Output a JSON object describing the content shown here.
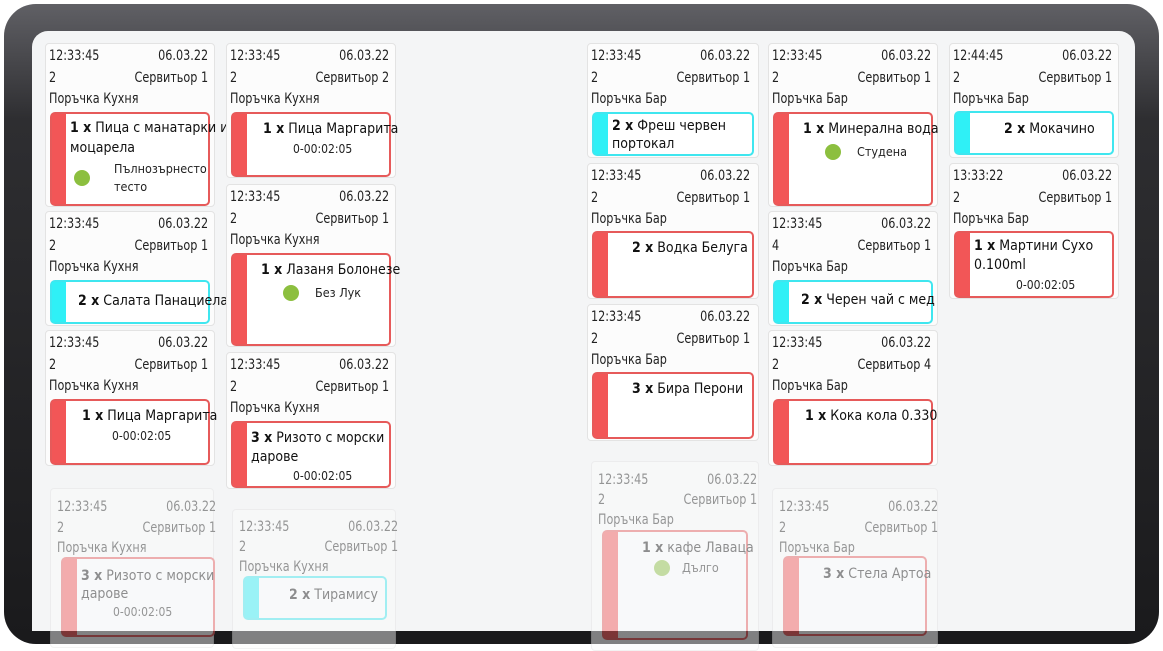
{
  "orders": [
    {
      "time": "12:33:45",
      "date": "06.03.22",
      "table": "2",
      "waiter": "Сервитьор 1",
      "type": "Поръчка Кухня",
      "items": [
        {
          "qty": "1 x",
          "name": "Пица с манатарки и",
          "name2": "моцарела",
          "mod": "Пълнозърнесто",
          "mod2": "тесто",
          "timer": ""
        }
      ]
    },
    {
      "time": "12:33:45",
      "date": "06.03.22",
      "table": "2",
      "waiter": "Сервитьор 1",
      "type": "Поръчка Кухня",
      "items": [
        {
          "qty": "2 x",
          "name": "Салата Панациела",
          "timer": ""
        }
      ]
    },
    {
      "time": "12:33:45",
      "date": "06.03.22",
      "table": "2",
      "waiter": "Сервитьор 1",
      "type": "Поръчка Кухня",
      "items": [
        {
          "qty": "1 x",
          "name": "Пица Маргарита",
          "timer": "0-00:02:05"
        }
      ]
    },
    {
      "time": "12:33:45",
      "date": "06.03.22",
      "table": "2",
      "waiter": "Сервитьор 1",
      "type": "Поръчка Кухня",
      "items": [
        {
          "qty": "3 x",
          "name": "Ризото с морски",
          "name2": "дарове",
          "timer": "0-00:02:05"
        }
      ]
    },
    {
      "time": "12:33:45",
      "date": "06.03.22",
      "table": "2",
      "waiter": "Сервитьор 2",
      "type": "Поръчка Кухня",
      "items": [
        {
          "qty": "1 x",
          "name": "Пица Маргарита",
          "timer": "0-00:02:05"
        }
      ]
    },
    {
      "time": "12:33:45",
      "date": "06.03.22",
      "table": "2",
      "waiter": "Сервитьор 1",
      "type": "Поръчка Кухня",
      "items": [
        {
          "qty": "1 x",
          "name": "Лазаня Болонезе",
          "mod": "Без Лук"
        }
      ]
    },
    {
      "time": "12:33:45",
      "date": "06.03.22",
      "table": "2",
      "waiter": "Сервитьор 1",
      "type": "Поръчка Кухня",
      "items": [
        {
          "qty": "3 x",
          "name": "Ризото с морски",
          "name2": "дарове",
          "timer": "0-00:02:05"
        }
      ]
    },
    {
      "time": "12:33:45",
      "date": "06.03.22",
      "table": "2",
      "waiter": "Сервитьор 1",
      "type": "Поръчка Кухня",
      "items": [
        {
          "qty": "2 x",
          "name": "Тирамису"
        }
      ]
    },
    {
      "time": "12:33:45",
      "date": "06.03.22",
      "table": "2",
      "waiter": "Сервитьор 1",
      "type": "Поръчка Бар",
      "items": [
        {
          "qty": "2 x",
          "name": "Фреш червен",
          "name2": "портокал"
        }
      ]
    },
    {
      "time": "12:33:45",
      "date": "06.03.22",
      "table": "2",
      "waiter": "Сервитьор 1",
      "type": "Поръчка Бар",
      "items": [
        {
          "qty": "2 x",
          "name": "Водка Белуга"
        }
      ]
    },
    {
      "time": "12:33:45",
      "date": "06.03.22",
      "table": "2",
      "waiter": "Сервитьор 1",
      "type": "Поръчка Бар",
      "items": [
        {
          "qty": "3 x",
          "name": "Бира Перони"
        }
      ]
    },
    {
      "time": "12:33:45",
      "date": "06.03.22",
      "table": "2",
      "waiter": "Сервитьор 1",
      "type": "Поръчка Бар",
      "items": [
        {
          "qty": "1 x",
          "name": "кафе Лаваца",
          "mod": "Дълго"
        }
      ]
    },
    {
      "time": "12:33:45",
      "date": "06.03.22",
      "table": "2",
      "waiter": "Сервитьор 1",
      "type": "Поръчка Бар",
      "items": [
        {
          "qty": "1 x",
          "name": "Минерална вода",
          "mod": "Студена"
        }
      ]
    },
    {
      "time": "12:33:45",
      "date": "06.03.22",
      "table": "4",
      "waiter": "Сервитьор 1",
      "type": "Поръчка Бар",
      "items": [
        {
          "qty": "2 x",
          "name": "Черен чай  с мед"
        }
      ]
    },
    {
      "time": "12:33:45",
      "date": "06.03.22",
      "table": "2",
      "waiter": "Сервитьор 4",
      "type": "Поръчка Бар",
      "items": [
        {
          "qty": "1 x",
          "name": "Кока кола 0.330"
        }
      ]
    },
    {
      "time": "12:33:45",
      "date": "06.03.22",
      "table": "2",
      "waiter": "Сервитьор 1",
      "type": "Поръчка Бар",
      "items": [
        {
          "qty": "3 x",
          "name": "Стела Артоа"
        }
      ]
    },
    {
      "time": "12:44:45",
      "date": "06.03.22",
      "table": "2",
      "waiter": "Сервитьор 1",
      "type": "Поръчка Бар",
      "items": [
        {
          "qty": "2 x",
          "name": "Мокачино"
        }
      ]
    },
    {
      "time": "13:33:22",
      "date": "06.03.22",
      "table": "2",
      "waiter": "Сервитьор 1",
      "type": "Поръчка Бар",
      "items": [
        {
          "qty": "1 x",
          "name": "Мартини Сухо",
          "name2": "0.100ml",
          "timer": "0-00:02:05"
        }
      ]
    }
  ],
  "colors": {
    "urgent": "#f25657",
    "new": "#2ff0f6",
    "modifier_dot": "#8cbf3f"
  }
}
